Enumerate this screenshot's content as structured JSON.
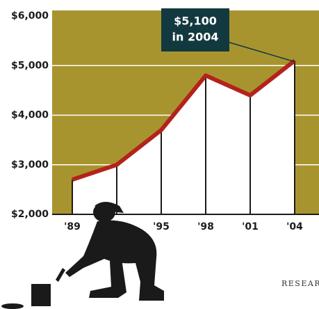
{
  "chart_data": {
    "type": "line",
    "categories": [
      "'89",
      null,
      "'95",
      "'98",
      "'01",
      "'04"
    ],
    "values": [
      2700,
      3000,
      3700,
      4800,
      4400,
      5100
    ],
    "color": "#b3231b",
    "background": "#a8942f",
    "fill": "#ffffff",
    "ylim": [
      2000,
      6000
    ],
    "yticks": [
      {
        "value": 2000,
        "label": "$2,000"
      },
      {
        "value": 3000,
        "label": "$3,000"
      },
      {
        "value": 4000,
        "label": "$4,000"
      },
      {
        "value": 5000,
        "label": "$5,000"
      },
      {
        "value": 6000,
        "label": "$6,000"
      }
    ],
    "grid": true,
    "annotation": [
      "$5,100",
      "in 2004"
    ],
    "source": "RESEAR"
  }
}
